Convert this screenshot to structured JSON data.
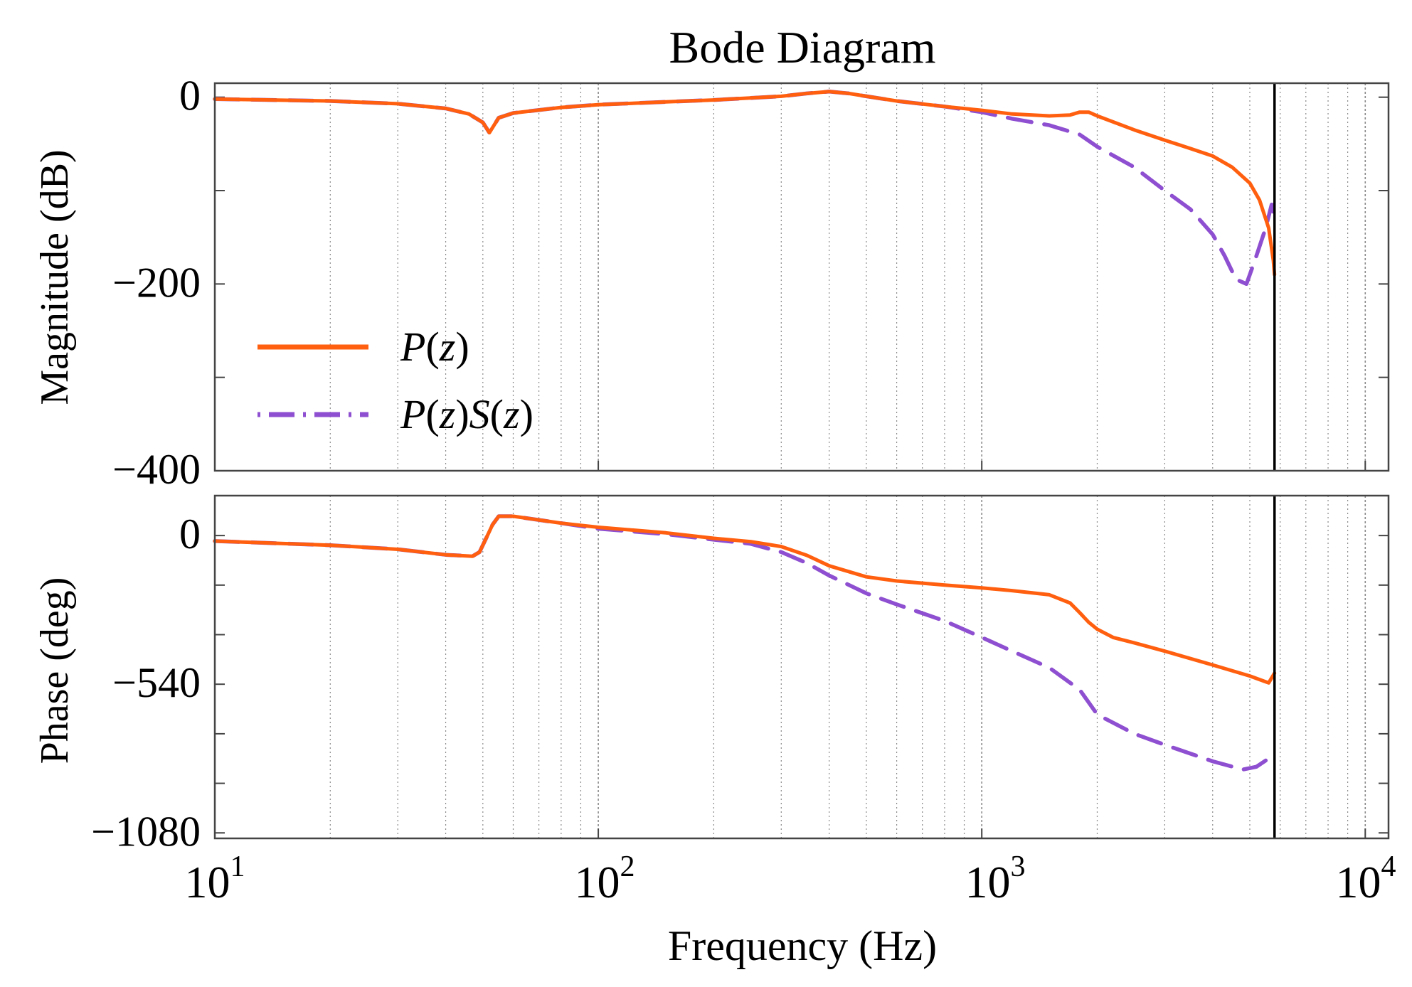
{
  "chart_data": {
    "type": "line",
    "title": "Bode Diagram",
    "xlabel": "Frequency  (Hz)",
    "xscale": "log",
    "xlim": [
      10,
      11500
    ],
    "x_ticks": [
      {
        "value": 10,
        "base": "10",
        "exp": "1"
      },
      {
        "value": 100,
        "base": "10",
        "exp": "2"
      },
      {
        "value": 1000,
        "base": "10",
        "exp": "3"
      },
      {
        "value": 10000,
        "base": "10",
        "exp": "4"
      }
    ],
    "nyquist_hz": 5800,
    "colors": {
      "p": "#ff5f0f",
      "ps": "#8e4fd0",
      "nyquist": "#000000",
      "grid": "#8a8a8a"
    },
    "legend": {
      "placement": "center-left of magnitude panel",
      "entries": [
        {
          "pre": "P",
          "mid": "(",
          "var": "z",
          "post": ")",
          "pre2": "",
          "mid2": "",
          "var2": "",
          "post2": "",
          "style": "solid"
        },
        {
          "pre": "P",
          "mid": "(",
          "var": "z",
          "post": ")",
          "pre2": "S",
          "mid2": "(",
          "var2": "z",
          "post2": ")",
          "style": "dashdot"
        }
      ]
    },
    "panels": [
      {
        "name": "magnitude",
        "ylabel": "Magnitude (dB)",
        "ylim": [
          -400,
          15
        ],
        "y_ticks": [
          {
            "value": 0,
            "label": "0"
          },
          {
            "value": -200,
            "label": "−200"
          },
          {
            "value": -400,
            "label": "−400"
          }
        ],
        "y_minor": [
          -100,
          -300
        ],
        "series": [
          {
            "name": "P(z)",
            "style": "solid",
            "x": [
              10,
              20,
              30,
              40,
              46,
              50,
              52,
              55,
              60,
              80,
              100,
              150,
              200,
              300,
              350,
              400,
              450,
              500,
              600,
              800,
              1000,
              1200,
              1500,
              1700,
              1800,
              1900,
              2000,
              2500,
              3000,
              3500,
              4000,
              4500,
              5000,
              5300,
              5600,
              5760,
              5800
            ],
            "y": [
              -2,
              -4,
              -7,
              -12,
              -18,
              -27,
              -38,
              -22,
              -17,
              -11,
              -8,
              -5,
              -3,
              1,
              4,
              6,
              4,
              1,
              -4,
              -10,
              -14,
              -18,
              -20,
              -19,
              -16,
              -16,
              -20,
              -35,
              -46,
              -55,
              -63,
              -75,
              -92,
              -110,
              -140,
              -175,
              -190
            ]
          },
          {
            "name": "P(z)S(z)",
            "style": "dashdot",
            "x": [
              10,
              20,
              30,
              40,
              46,
              50,
              52,
              55,
              60,
              80,
              100,
              150,
              200,
              300,
              350,
              400,
              450,
              500,
              600,
              800,
              1000,
              1200,
              1500,
              1800,
              2000,
              2500,
              3000,
              3500,
              4000,
              4300,
              4600,
              4900,
              5000,
              5200,
              5500,
              5700,
              5800
            ],
            "y": [
              -2,
              -4,
              -7,
              -12,
              -18,
              -27,
              -38,
              -22,
              -17,
              -11,
              -8,
              -5,
              -3,
              1,
              4,
              6,
              4,
              1,
              -4,
              -10,
              -16,
              -23,
              -30,
              -40,
              -53,
              -75,
              -100,
              -120,
              -147,
              -170,
              -195,
              -200,
              -190,
              -170,
              -140,
              -115,
              -130
            ]
          }
        ]
      },
      {
        "name": "phase",
        "ylabel": "Phase  (deg)",
        "ylim": [
          -1100,
          145
        ],
        "y_ticks": [
          {
            "value": 0,
            "label": "0"
          },
          {
            "value": -540,
            "label": "−540"
          },
          {
            "value": -1080,
            "label": "−1080"
          }
        ],
        "y_minor": [
          -180,
          -360,
          -720,
          -900
        ],
        "series": [
          {
            "name": "P(z)",
            "style": "solid",
            "x": [
              10,
              20,
              30,
              40,
              47,
              49,
              51,
              53,
              55,
              60,
              80,
              100,
              150,
              200,
              250,
              300,
              350,
              400,
              500,
              600,
              800,
              1000,
              1200,
              1500,
              1700,
              1800,
              1900,
              2000,
              2200,
              2500,
              3000,
              4000,
              5000,
              5600,
              5800
            ],
            "y": [
              -20,
              -35,
              -50,
              -70,
              -75,
              -60,
              -10,
              40,
              70,
              70,
              45,
              30,
              10,
              -10,
              -22,
              -40,
              -72,
              -110,
              -150,
              -165,
              -180,
              -190,
              -200,
              -215,
              -245,
              -280,
              -315,
              -340,
              -370,
              -390,
              -420,
              -470,
              -510,
              -535,
              -500
            ]
          },
          {
            "name": "P(z)S(z)",
            "style": "dashdot",
            "x": [
              10,
              20,
              30,
              40,
              47,
              49,
              51,
              53,
              55,
              60,
              80,
              100,
              150,
              200,
              250,
              300,
              350,
              400,
              500,
              600,
              800,
              1000,
              1200,
              1500,
              1800,
              2000,
              2500,
              3000,
              4000,
              4800,
              5200,
              5600,
              5800
            ],
            "y": [
              -20,
              -35,
              -50,
              -70,
              -75,
              -60,
              -10,
              40,
              70,
              70,
              45,
              25,
              5,
              -15,
              -30,
              -60,
              -100,
              -145,
              -210,
              -250,
              -310,
              -370,
              -420,
              -480,
              -560,
              -650,
              -720,
              -760,
              -820,
              -850,
              -840,
              -810,
              -800
            ]
          }
        ]
      }
    ]
  }
}
